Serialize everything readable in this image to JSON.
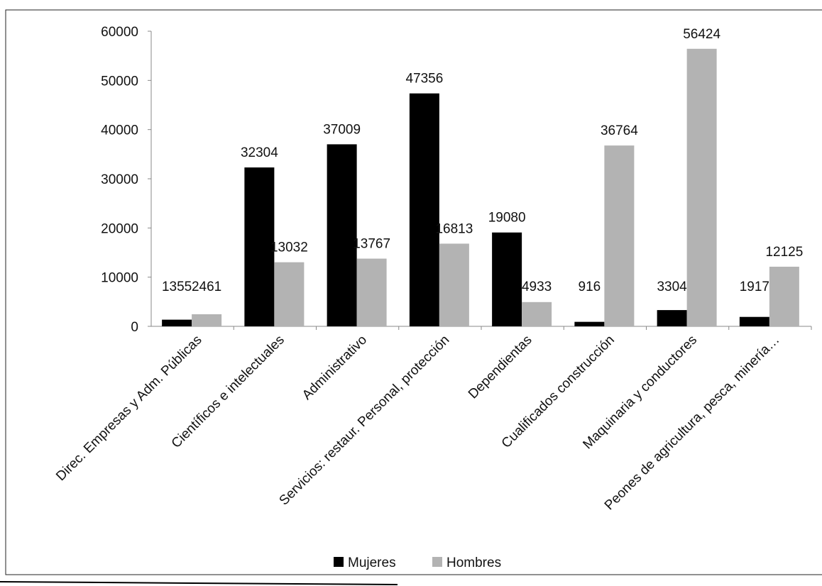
{
  "chart_data": {
    "type": "bar",
    "categories": [
      "Direc. Empresas y Adm. Públicas",
      "Científicos e intelectuales",
      "Administrativo",
      "Servicios: restaur. Personal, protección",
      "Dependientas",
      "Cualificados construcción",
      "Maquinaria y conductores",
      "Peones de agricultura, pesca, minería…"
    ],
    "series": [
      {
        "name": "Mujeres",
        "color": "#000000",
        "values": [
          1355,
          32304,
          37009,
          47356,
          19080,
          916,
          3304,
          1917
        ],
        "labels": [
          "1355",
          "32304",
          "37009",
          "47356",
          "19080",
          "916",
          "3304",
          "1917"
        ]
      },
      {
        "name": "Hombres",
        "color": "#b3b3b3",
        "values": [
          2461,
          13032,
          13767,
          16813,
          4933,
          36764,
          56424,
          12125
        ],
        "labels": [
          "2461",
          "13032",
          "13767",
          "16813",
          "4933",
          "36764",
          "56424",
          "12125"
        ]
      }
    ],
    "yticks": [
      "0",
      "10000",
      "20000",
      "30000",
      "40000",
      "50000",
      "60000"
    ],
    "ylim": [
      0,
      60000
    ],
    "grid": false,
    "legend_position": "bottom"
  }
}
